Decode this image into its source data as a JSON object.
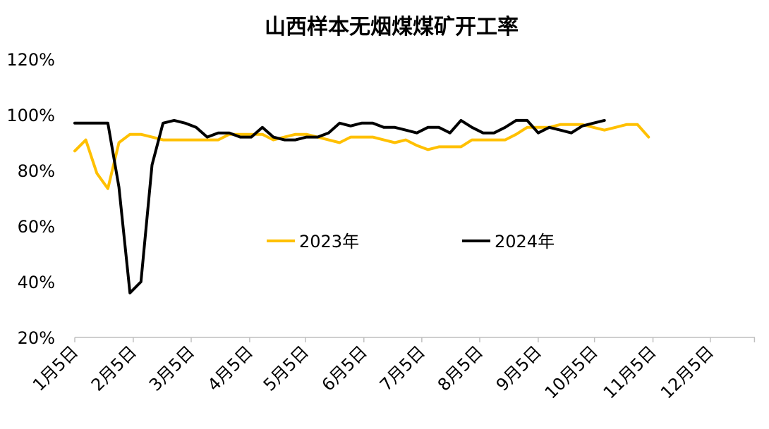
{
  "chart_data": {
    "type": "line",
    "title": "山西样本无烟煤煤矿开工率",
    "xlabel": "",
    "ylabel": "",
    "ylim": [
      20,
      120
    ],
    "yticks": [
      "20%",
      "40%",
      "60%",
      "80%",
      "100%",
      "120%"
    ],
    "xticks": [
      "1月5日",
      "2月5日",
      "3月5日",
      "4月5日",
      "5月5日",
      "6月5日",
      "7月5日",
      "8月5日",
      "9月5日",
      "10月5日",
      "11月5日",
      "12月5日"
    ],
    "x_unit": "week",
    "legend_position": "center",
    "grid": false,
    "series": [
      {
        "name": "2023年",
        "color": "#FFC000",
        "values": [
          87,
          91,
          79,
          73.5,
          90,
          93,
          93,
          92,
          91,
          91,
          91,
          91,
          91,
          91,
          93,
          93,
          93,
          93,
          91,
          92,
          93,
          93,
          92,
          91,
          90,
          92,
          92,
          92,
          91,
          90,
          91,
          89,
          87.5,
          88.5,
          88.5,
          88.5,
          91,
          91,
          91,
          91,
          93,
          95.5,
          95.5,
          95.5,
          96.5,
          96.5,
          96.5,
          95.5,
          94.5,
          95.5,
          96.5,
          96.5,
          92
        ]
      },
      {
        "name": "2024年",
        "color": "#000000",
        "values": [
          97,
          97,
          97,
          97,
          74,
          36,
          40,
          82,
          97,
          98,
          97,
          95.5,
          92,
          93.5,
          93.5,
          92,
          92,
          95.5,
          92,
          91,
          91,
          92,
          92,
          93.5,
          97,
          96,
          97,
          97,
          95.5,
          95.5,
          94.5,
          93.5,
          95.5,
          95.5,
          93.5,
          98,
          95.5,
          93.5,
          93.5,
          95.5,
          98,
          98,
          93.5,
          95.5,
          94.5,
          93.5,
          96,
          97,
          98
        ]
      }
    ]
  }
}
